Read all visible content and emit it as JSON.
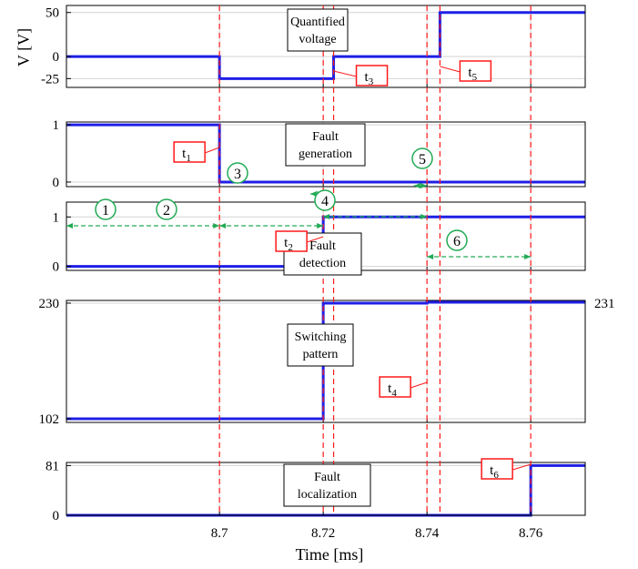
{
  "chart_data": {
    "type": "line",
    "xlabel": "Time [ms]",
    "x_ticks": [
      "8.7",
      "8.72",
      "8.74",
      "8.76"
    ],
    "xlim": [
      8.6705,
      8.7705
    ],
    "grid": true,
    "panels": [
      {
        "id": "voltage",
        "ylabel": "V [V]",
        "title_lines": [
          "Quantified",
          "voltage"
        ],
        "ylim": [
          -35,
          58
        ],
        "yticks": [
          "50",
          "0",
          "-25"
        ],
        "ytick_values": [
          50,
          0,
          -25
        ],
        "x": [
          8.6705,
          8.7,
          8.7,
          8.722,
          8.722,
          8.7425,
          8.7425,
          8.7705
        ],
        "y": [
          0,
          0,
          -25,
          -25,
          0,
          0,
          50,
          50
        ]
      },
      {
        "id": "fault-generation",
        "ylabel": "",
        "title_lines": [
          "Fault",
          "generation"
        ],
        "ylim": [
          -0.08,
          1.05
        ],
        "yticks": [
          "1",
          "0"
        ],
        "ytick_values": [
          1,
          0
        ],
        "x": [
          8.6705,
          8.7,
          8.7,
          8.7705
        ],
        "y": [
          1,
          1,
          0,
          0
        ]
      },
      {
        "id": "fault-detection",
        "ylabel": "",
        "title_lines": [
          "Fault",
          "detection"
        ],
        "ylim": [
          -0.08,
          1.3
        ],
        "yticks": [
          "1",
          "0"
        ],
        "ytick_values": [
          1,
          0
        ],
        "x": [
          8.6705,
          8.72,
          8.72,
          8.7705
        ],
        "y": [
          0,
          0,
          1,
          1
        ]
      },
      {
        "id": "switching-pattern",
        "ylabel": "",
        "title_lines": [
          "Switching",
          "pattern"
        ],
        "ylim": [
          98,
          233
        ],
        "yticks": [
          "230",
          "102"
        ],
        "ytick_values": [
          230,
          102
        ],
        "outside_label": "231",
        "x": [
          8.6705,
          8.72,
          8.72,
          8.74,
          8.74,
          8.7705
        ],
        "y": [
          102,
          102,
          230,
          230,
          231,
          231
        ]
      },
      {
        "id": "fault-localization",
        "ylabel": "",
        "title_lines": [
          "Fault",
          "localization"
        ],
        "ylim": [
          0,
          86
        ],
        "yticks": [
          "81",
          "0"
        ],
        "ytick_values": [
          81,
          0
        ],
        "x": [
          8.6705,
          8.76,
          8.76,
          8.7705
        ],
        "y": [
          0,
          0,
          81,
          81
        ]
      }
    ],
    "time_markers": [
      {
        "label": "t",
        "sub": "1",
        "x": 8.7
      },
      {
        "label": "t",
        "sub": "2",
        "x": 8.72
      },
      {
        "label": "t",
        "sub": "3",
        "x": 8.722
      },
      {
        "label": "t",
        "sub": "4",
        "x": 8.74
      },
      {
        "label": "t",
        "sub": "5",
        "x": 8.7425
      },
      {
        "label": "t",
        "sub": "6",
        "x": 8.76
      }
    ],
    "intervals": [
      {
        "label": "1",
        "from": 8.6705,
        "to": 8.7
      },
      {
        "label": "2",
        "from": 8.7,
        "to": 8.72
      },
      {
        "label": "3",
        "from": 8.7175,
        "to": 8.72
      },
      {
        "label": "4",
        "from": 8.72,
        "to": 8.74
      },
      {
        "label": "5",
        "from": 8.7375,
        "to": 8.74
      },
      {
        "label": "6",
        "from": 8.74,
        "to": 8.76
      }
    ],
    "colors": {
      "signal": "#1f1fe6",
      "marker_line": "#ff1a1a",
      "interval_arrow": "#22aa55",
      "grid": "#d4d4d4"
    }
  }
}
